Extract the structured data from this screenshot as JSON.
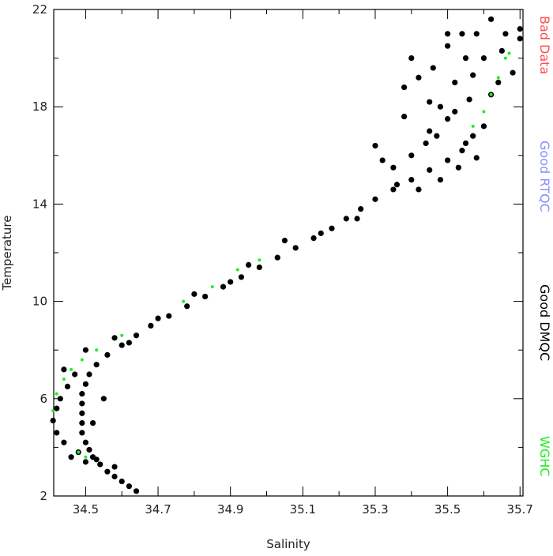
{
  "chart_data": {
    "type": "scatter",
    "xlabel": "Salinity",
    "ylabel": "Temperature",
    "xlim": [
      34.4118,
      35.7082
    ],
    "ylim": [
      2,
      22
    ],
    "xticks": [
      34.5,
      34.7,
      34.9,
      35.1,
      35.3,
      35.5,
      35.7
    ],
    "xminorticks": [
      34.6,
      34.8,
      35.0,
      35.2,
      35.4,
      35.6
    ],
    "yticks": [
      2,
      6,
      10,
      14,
      18,
      22
    ],
    "yminorticks": [
      4,
      8,
      12,
      16,
      20
    ],
    "series": [
      {
        "name": "Bad Data",
        "color": "#ff5050",
        "x": [],
        "values": []
      },
      {
        "name": "Good RTQC",
        "color": "#8c8cff",
        "x": [],
        "values": []
      },
      {
        "name": "Good DMQC",
        "color": "#000000",
        "x": [
          34.64,
          34.62,
          34.6,
          34.58,
          34.56,
          34.54,
          34.52,
          34.51,
          34.5,
          34.49,
          34.49,
          34.49,
          34.49,
          34.49,
          34.5,
          34.51,
          34.53,
          34.56,
          34.6,
          34.64,
          34.68,
          34.73,
          34.78,
          34.83,
          34.88,
          34.93,
          34.98,
          35.03,
          35.08,
          35.13,
          35.18,
          35.22,
          35.26,
          35.3,
          35.35,
          35.4,
          35.45,
          35.5,
          35.54,
          35.57,
          34.58,
          34.53,
          34.48,
          34.44,
          34.42,
          34.41,
          34.42,
          34.43,
          34.45,
          34.47,
          35.45,
          35.4,
          35.35,
          35.48,
          35.52,
          35.55,
          35.58,
          35.62,
          35.66,
          35.7,
          35.68,
          35.62,
          35.56,
          35.5,
          35.44,
          35.38,
          35.42,
          35.46,
          35.5,
          35.6,
          35.64,
          35.6,
          35.53,
          35.48,
          35.42,
          35.36,
          35.32,
          35.3,
          35.58,
          35.55,
          35.47,
          35.38,
          35.45,
          35.52,
          35.57,
          35.65,
          35.7,
          35.54,
          35.5,
          35.4,
          34.7,
          34.62,
          34.8,
          34.95,
          35.05,
          35.15,
          35.25,
          34.55,
          34.52,
          34.46,
          34.5,
          34.44,
          34.5,
          34.58,
          34.9
        ],
        "values": [
          2.2,
          2.4,
          2.6,
          2.8,
          3.0,
          3.3,
          3.6,
          3.9,
          4.2,
          4.6,
          5.0,
          5.4,
          5.8,
          6.2,
          6.6,
          7.0,
          7.4,
          7.8,
          8.2,
          8.6,
          9.0,
          9.4,
          9.8,
          10.2,
          10.6,
          11.0,
          11.4,
          11.8,
          12.2,
          12.6,
          13.0,
          13.4,
          13.8,
          14.2,
          14.6,
          15.0,
          15.4,
          15.8,
          16.2,
          16.8,
          3.2,
          3.5,
          3.8,
          4.2,
          4.6,
          5.1,
          5.6,
          6.0,
          6.5,
          7.0,
          17.0,
          16.0,
          15.5,
          18.0,
          19.0,
          20.0,
          21.0,
          21.6,
          21.0,
          20.8,
          19.4,
          18.5,
          18.3,
          17.5,
          16.5,
          17.6,
          19.2,
          19.6,
          20.5,
          20.0,
          19.0,
          17.2,
          15.5,
          15.0,
          14.6,
          14.8,
          15.8,
          16.4,
          15.9,
          16.5,
          16.8,
          18.8,
          18.2,
          17.8,
          19.3,
          20.3,
          21.2,
          21.0,
          21.0,
          20.0,
          9.3,
          8.3,
          10.3,
          11.5,
          12.5,
          12.8,
          13.4,
          6.0,
          5.0,
          3.6,
          3.4,
          7.2,
          8.0,
          8.5,
          10.8
        ]
      },
      {
        "name": "WGHC",
        "color": "#22ee22",
        "x": [
          34.41,
          34.42,
          34.44,
          34.46,
          34.49,
          34.53,
          34.6,
          34.77,
          34.85,
          34.92,
          34.98,
          34.48,
          34.5,
          35.57,
          35.6,
          35.62,
          35.64,
          35.66,
          35.67
        ],
        "values": [
          5.5,
          6.2,
          6.8,
          7.2,
          7.6,
          8.0,
          8.6,
          10.0,
          10.6,
          11.3,
          11.7,
          3.8,
          3.6,
          17.2,
          17.8,
          18.5,
          19.2,
          20.0,
          20.2
        ]
      }
    ]
  }
}
